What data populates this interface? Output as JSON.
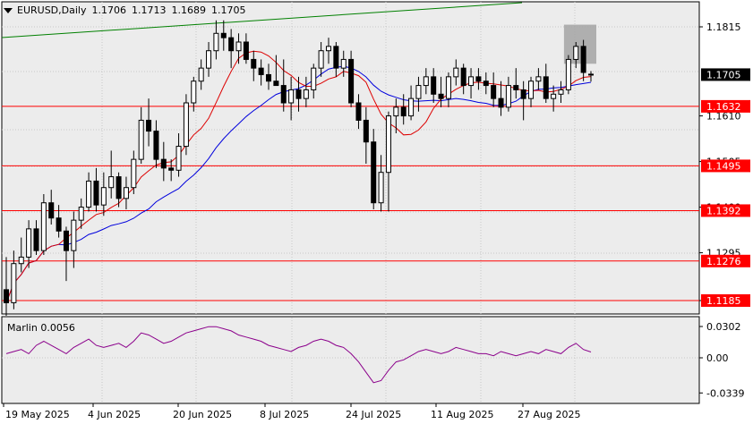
{
  "header": {
    "symbol_timeframe": "EURUSD,Daily",
    "open": "1.1706",
    "high": "1.1713",
    "low": "1.1689",
    "close": "1.1705"
  },
  "oscillator": {
    "name": "Marlin",
    "value": "0.0056",
    "ticks": [
      "0.0302",
      "0.00",
      "-0.0339"
    ],
    "color": "#8b008b"
  },
  "colors": {
    "bull": "#ffffff",
    "bear": "#000000",
    "level": "#ff0000",
    "ma_fast": "#dd0000",
    "ma_slow": "#0000dd",
    "trendline": "#008000",
    "highlight": "#a0a0a0"
  },
  "chart_data": {
    "type": "candlestick",
    "symbol": "EURUSD",
    "timeframe": "Daily",
    "price_axis_ticks": [
      "1.1815",
      "1.1610",
      "1.1505",
      "1.1400",
      "1.1295",
      "1.1185"
    ],
    "current_price": "1.1705",
    "horizontal_levels": [
      "1.1632",
      "1.1495",
      "1.1392",
      "1.1276",
      "1.1185"
    ],
    "x_tick_labels": [
      "19 May 2025",
      "4 Jun 2025",
      "20 Jun 2025",
      "8 Jul 2025",
      "24 Jul 2025",
      "11 Aug 2025",
      "27 Aug 2025"
    ],
    "candles": [
      [
        1.121,
        1.1285,
        1.115,
        1.118
      ],
      [
        1.118,
        1.13,
        1.1165,
        1.127
      ],
      [
        1.127,
        1.133,
        1.125,
        1.1285
      ],
      [
        1.1285,
        1.137,
        1.126,
        1.135
      ],
      [
        1.135,
        1.137,
        1.129,
        1.13
      ],
      [
        1.13,
        1.143,
        1.129,
        1.141
      ],
      [
        1.141,
        1.144,
        1.136,
        1.1375
      ],
      [
        1.1375,
        1.1405,
        1.133,
        1.1345
      ],
      [
        1.1345,
        1.1355,
        1.123,
        1.13
      ],
      [
        1.13,
        1.139,
        1.126,
        1.137
      ],
      [
        1.137,
        1.142,
        1.135,
        1.14
      ],
      [
        1.14,
        1.148,
        1.139,
        1.146
      ],
      [
        1.146,
        1.149,
        1.139,
        1.1405
      ],
      [
        1.1405,
        1.148,
        1.138,
        1.1445
      ],
      [
        1.1445,
        1.153,
        1.142,
        1.147
      ],
      [
        1.147,
        1.148,
        1.14,
        1.142
      ],
      [
        1.142,
        1.147,
        1.1395,
        1.1445
      ],
      [
        1.1445,
        1.153,
        1.143,
        1.151
      ],
      [
        1.151,
        1.163,
        1.15,
        1.16
      ],
      [
        1.16,
        1.165,
        1.154,
        1.1575
      ],
      [
        1.1575,
        1.16,
        1.149,
        1.151
      ],
      [
        1.151,
        1.155,
        1.146,
        1.149
      ],
      [
        1.149,
        1.151,
        1.146,
        1.1485
      ],
      [
        1.1485,
        1.157,
        1.147,
        1.154
      ],
      [
        1.154,
        1.166,
        1.152,
        1.164
      ],
      [
        1.164,
        1.17,
        1.162,
        1.169
      ],
      [
        1.169,
        1.174,
        1.167,
        1.172
      ],
      [
        1.172,
        1.178,
        1.17,
        1.176
      ],
      [
        1.176,
        1.183,
        1.174,
        1.18
      ],
      [
        1.18,
        1.183,
        1.176,
        1.179
      ],
      [
        1.179,
        1.181,
        1.172,
        1.176
      ],
      [
        1.176,
        1.18,
        1.173,
        1.178
      ],
      [
        1.178,
        1.18,
        1.173,
        1.174
      ],
      [
        1.174,
        1.176,
        1.169,
        1.172
      ],
      [
        1.172,
        1.174,
        1.168,
        1.1705
      ],
      [
        1.1705,
        1.173,
        1.167,
        1.169
      ],
      [
        1.169,
        1.175,
        1.168,
        1.168
      ],
      [
        1.168,
        1.174,
        1.162,
        1.164
      ],
      [
        1.164,
        1.17,
        1.16,
        1.167
      ],
      [
        1.167,
        1.17,
        1.162,
        1.165
      ],
      [
        1.165,
        1.17,
        1.163,
        1.167
      ],
      [
        1.167,
        1.173,
        1.165,
        1.172
      ],
      [
        1.172,
        1.178,
        1.17,
        1.176
      ],
      [
        1.176,
        1.179,
        1.173,
        1.177
      ],
      [
        1.177,
        1.178,
        1.17,
        1.172
      ],
      [
        1.172,
        1.176,
        1.17,
        1.174
      ],
      [
        1.174,
        1.176,
        1.163,
        1.164
      ],
      [
        1.164,
        1.166,
        1.158,
        1.16
      ],
      [
        1.16,
        1.163,
        1.15,
        1.155
      ],
      [
        1.155,
        1.158,
        1.1395,
        1.141
      ],
      [
        1.141,
        1.152,
        1.139,
        1.148
      ],
      [
        1.148,
        1.162,
        1.139,
        1.161
      ],
      [
        1.161,
        1.165,
        1.157,
        1.163
      ],
      [
        1.163,
        1.166,
        1.159,
        1.161
      ],
      [
        1.161,
        1.168,
        1.16,
        1.165
      ],
      [
        1.165,
        1.17,
        1.162,
        1.168
      ],
      [
        1.168,
        1.172,
        1.166,
        1.17
      ],
      [
        1.17,
        1.172,
        1.164,
        1.166
      ],
      [
        1.166,
        1.17,
        1.163,
        1.165
      ],
      [
        1.165,
        1.171,
        1.163,
        1.17
      ],
      [
        1.17,
        1.174,
        1.168,
        1.172
      ],
      [
        1.172,
        1.173,
        1.166,
        1.168
      ],
      [
        1.168,
        1.172,
        1.165,
        1.17
      ],
      [
        1.17,
        1.172,
        1.167,
        1.169
      ],
      [
        1.169,
        1.171,
        1.166,
        1.168
      ],
      [
        1.168,
        1.171,
        1.163,
        1.165
      ],
      [
        1.165,
        1.169,
        1.161,
        1.163
      ],
      [
        1.163,
        1.17,
        1.162,
        1.168
      ],
      [
        1.168,
        1.172,
        1.165,
        1.167
      ],
      [
        1.167,
        1.169,
        1.16,
        1.165
      ],
      [
        1.165,
        1.17,
        1.163,
        1.169
      ],
      [
        1.169,
        1.172,
        1.167,
        1.17
      ],
      [
        1.17,
        1.173,
        1.164,
        1.165
      ],
      [
        1.165,
        1.168,
        1.162,
        1.166
      ],
      [
        1.166,
        1.169,
        1.164,
        1.167
      ],
      [
        1.167,
        1.175,
        1.166,
        1.174
      ],
      [
        1.174,
        1.178,
        1.172,
        1.177
      ],
      [
        1.177,
        1.1785,
        1.169,
        1.171
      ],
      [
        1.1706,
        1.1713,
        1.1689,
        1.1705
      ]
    ],
    "marlin_series": [
      0.004,
      0.006,
      0.008,
      0.004,
      0.012,
      0.016,
      0.012,
      0.008,
      0.004,
      0.01,
      0.014,
      0.018,
      0.012,
      0.01,
      0.012,
      0.014,
      0.01,
      0.016,
      0.024,
      0.022,
      0.018,
      0.014,
      0.016,
      0.02,
      0.024,
      0.026,
      0.028,
      0.03,
      0.03,
      0.028,
      0.026,
      0.022,
      0.02,
      0.018,
      0.016,
      0.012,
      0.01,
      0.008,
      0.006,
      0.01,
      0.012,
      0.016,
      0.018,
      0.016,
      0.012,
      0.01,
      0.004,
      -0.004,
      -0.014,
      -0.024,
      -0.022,
      -0.012,
      -0.004,
      -0.002,
      0.002,
      0.006,
      0.008,
      0.006,
      0.004,
      0.006,
      0.01,
      0.008,
      0.006,
      0.004,
      0.004,
      0.002,
      0.006,
      0.004,
      0.002,
      0.004,
      0.006,
      0.004,
      0.008,
      0.006,
      0.004,
      0.01,
      0.014,
      0.008,
      0.0056
    ]
  }
}
